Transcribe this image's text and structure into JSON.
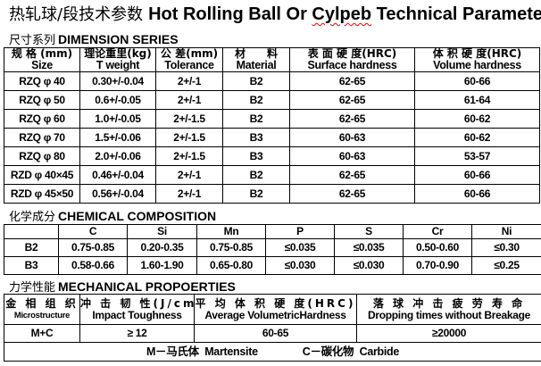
{
  "title": {
    "cn": "热轧球/段技术参数",
    "en_pre": "Hot Rolling Ball Or ",
    "en_sq": "Cylpeb",
    "en_post": " Technical Parameters"
  },
  "dimension": {
    "section_cn": "尺寸系列",
    "section_en": "DIMENSION SERIES",
    "headers": [
      {
        "cn": "规 格 (mm)",
        "en": "Size"
      },
      {
        "cn": "理论重里(kg)",
        "en": "T weight"
      },
      {
        "cn": "公 差(mm)",
        "en": "Tolerance"
      },
      {
        "cn": "材　　料",
        "en": "Material"
      },
      {
        "cn": "表 面 硬 度(HRC)",
        "en": "Surface hardness"
      },
      {
        "cn": "体 积 硬 度(HRC)",
        "en": "Volume hardness"
      }
    ],
    "rows": [
      [
        "RZQ φ 40",
        "0.30+/-0.04",
        "2+/-1",
        "B2",
        "62-65",
        "60-66"
      ],
      [
        "RZQ φ 50",
        "0.6+/-0.05",
        "2+/-1",
        "B2",
        "62-65",
        "61-64"
      ],
      [
        "RZQ φ 60",
        "1.0+/-0.05",
        "2+/-1.5",
        "B2",
        "62-65",
        "60-62"
      ],
      [
        "RZQ φ 70",
        "1.5+/-0.06",
        "2+/-1.5",
        "B3",
        "60-63",
        "60-62"
      ],
      [
        "RZQ φ 80",
        "2.0+/-0.06",
        "2+/-1.5",
        "B3",
        "60-63",
        "53-57"
      ],
      [
        "RZD φ 40×45",
        "0.46+/-0.04",
        "2+/-1",
        "B2",
        "62-65",
        "60-66"
      ],
      [
        "RZD φ 45×50",
        "0.56+/-0.04",
        "2+/-1",
        "B2",
        "62-65",
        "60-66"
      ]
    ]
  },
  "chemical": {
    "section_cn": "化学成分",
    "section_en": "CHEMICAL COMPOSITION",
    "headers": [
      "",
      "C",
      "Si",
      "Mn",
      "P",
      "S",
      "Cr",
      "Ni"
    ],
    "rows": [
      [
        "B2",
        "0.75-0.85",
        "0.20-0.35",
        "0.75-0.85",
        "≤0.035",
        "≤0.035",
        "0.50-0.60",
        "≤0.30"
      ],
      [
        "B3",
        "0.58-0.66",
        "1.60-1.90",
        "0.65-0.80",
        "≤0.030",
        "≤0.030",
        "0.70-0.90",
        "≤0.25"
      ]
    ]
  },
  "mechanical": {
    "section_cn": "力学性能",
    "section_en": "MECHANICAL PROPOERTIES",
    "headers": [
      {
        "cn": "金 相 组 织",
        "en": "Microstructure"
      },
      {
        "cn": "冲 击 韧 性(J/cm²)",
        "en": "Impact Toughness"
      },
      {
        "cn": "平 均 体 积 硬 度(HRC)",
        "en": "Average VolumetricHardness"
      },
      {
        "cn": "落 球 冲 击 疲 劳 寿 命",
        "en": "Dropping times without Breakage"
      }
    ],
    "row": [
      "M+C",
      "≥ 12",
      "60-65",
      "≥20000"
    ],
    "note_m": "M－马氏体  Martensite",
    "note_c": "C－碳化物  Carbide"
  }
}
